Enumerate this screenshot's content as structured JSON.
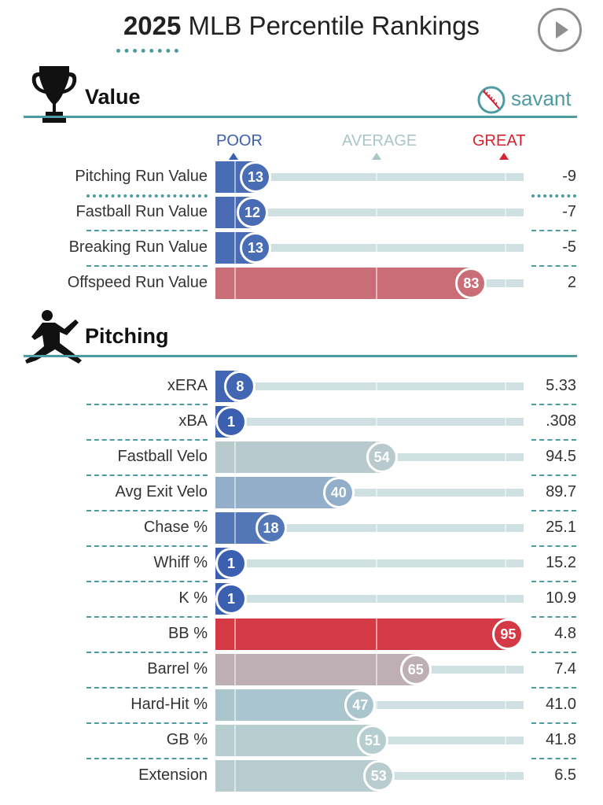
{
  "header": {
    "year": "2025",
    "title_rest": "MLB Percentile Rankings",
    "brand": "savant"
  },
  "scale": {
    "poor_label": "POOR",
    "average_label": "AVERAGE",
    "great_label": "GREAT"
  },
  "colors": {
    "accent": "#4e9ba2",
    "poor": "#3b60b0",
    "great": "#d8222f",
    "average": "#b7cfd2",
    "track": "#cfe0e2"
  },
  "chart_data": [
    {
      "type": "bar",
      "title": "Value",
      "orientation": "horizontal",
      "xlim": [
        0,
        100
      ],
      "categories": [
        "Pitching Run Value",
        "Fastball Run Value",
        "Breaking Run Value",
        "Offspeed Run Value"
      ],
      "values": [
        13,
        12,
        13,
        83
      ],
      "stat_values": [
        "-9",
        "-7",
        "-5",
        "2"
      ]
    },
    {
      "type": "bar",
      "title": "Pitching",
      "orientation": "horizontal",
      "xlim": [
        0,
        100
      ],
      "categories": [
        "xERA",
        "xBA",
        "Fastball Velo",
        "Avg Exit Velo",
        "Chase %",
        "Whiff %",
        "K %",
        "BB %",
        "Barrel %",
        "Hard-Hit %",
        "GB %",
        "Extension"
      ],
      "values": [
        8,
        1,
        54,
        40,
        18,
        1,
        1,
        95,
        65,
        47,
        51,
        53
      ],
      "stat_values": [
        "5.33",
        ".308",
        "94.5",
        "89.7",
        "25.1",
        "15.2",
        "10.9",
        "4.8",
        "7.4",
        "41.0",
        "41.8",
        "6.5"
      ]
    }
  ]
}
